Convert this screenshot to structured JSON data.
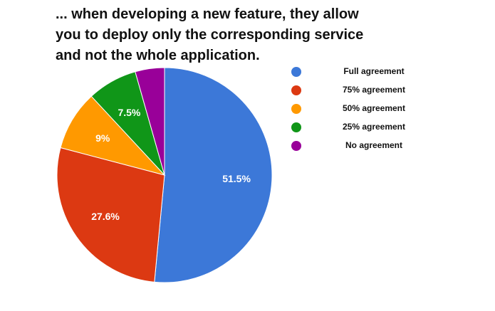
{
  "title_lines": [
    "... when developing a new feature, they allow",
    "you to deploy only the corresponding service",
    "and not the whole application."
  ],
  "chart_data": {
    "type": "pie",
    "title": "... when developing a new feature, they allow you to deploy only the corresponding service and not the whole application.",
    "categories": [
      "Full agreement",
      "75% agreement",
      "50% agreement",
      "25% agreement",
      "No agreement"
    ],
    "values": [
      51.5,
      27.6,
      9,
      7.5,
      4.4
    ],
    "labels": [
      "51.5%",
      "27.6%",
      "9%",
      "7.5%",
      ""
    ],
    "colors": [
      "#3c78d8",
      "#dc3912",
      "#ff9900",
      "#109618",
      "#990099"
    ],
    "legend": "right"
  }
}
